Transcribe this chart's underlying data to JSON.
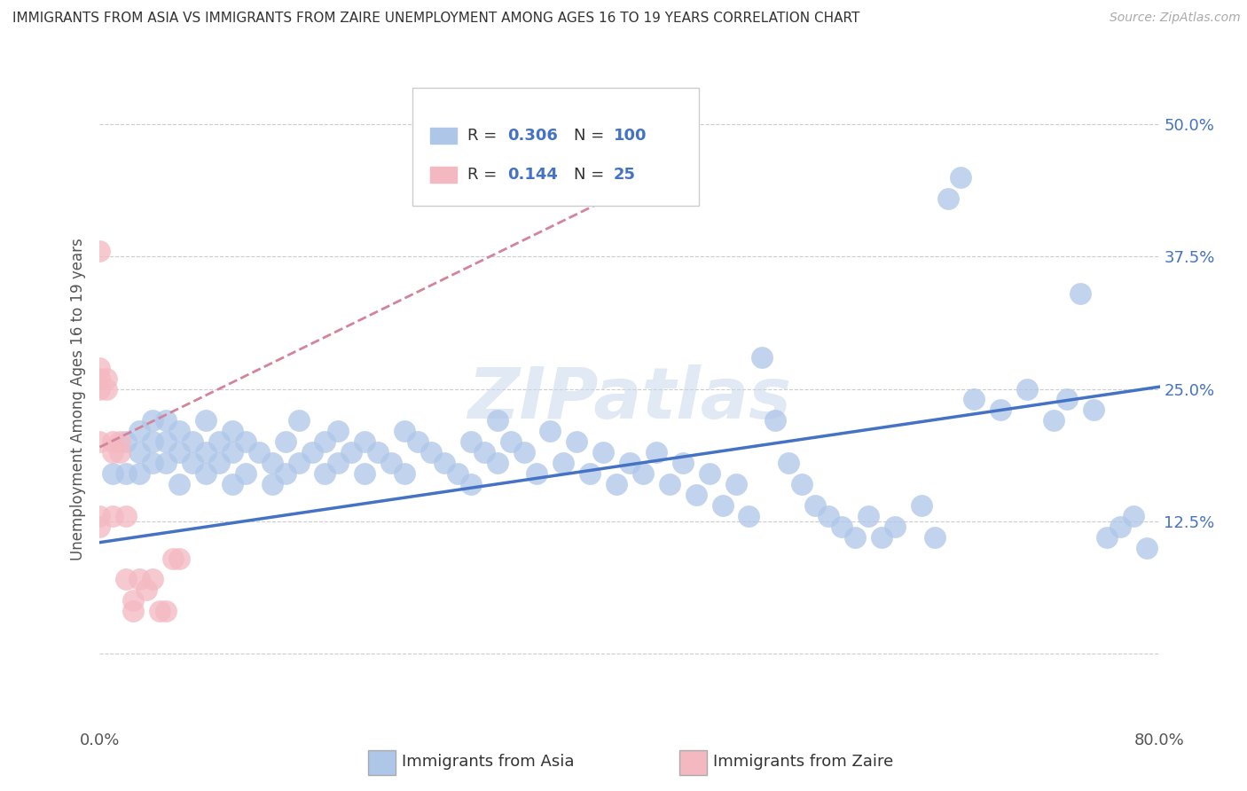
{
  "title": "IMMIGRANTS FROM ASIA VS IMMIGRANTS FROM ZAIRE UNEMPLOYMENT AMONG AGES 16 TO 19 YEARS CORRELATION CHART",
  "source": "Source: ZipAtlas.com",
  "ylabel": "Unemployment Among Ages 16 to 19 years",
  "xlim": [
    0.0,
    0.8
  ],
  "ylim": [
    -0.07,
    0.55
  ],
  "ytick_positions": [
    0.0,
    0.125,
    0.25,
    0.375,
    0.5
  ],
  "yticklabels": [
    "",
    "12.5%",
    "25.0%",
    "37.5%",
    "50.0%"
  ],
  "R_asia": 0.306,
  "N_asia": 100,
  "R_zaire": 0.144,
  "N_zaire": 25,
  "color_asia": "#aec6e8",
  "color_asia_line": "#4472c4",
  "color_zaire": "#f4b8c1",
  "color_zaire_line": "#d4849a",
  "watermark_color": "#c8d8ec",
  "asia_x": [
    0.01,
    0.02,
    0.02,
    0.03,
    0.03,
    0.03,
    0.04,
    0.04,
    0.04,
    0.05,
    0.05,
    0.05,
    0.06,
    0.06,
    0.06,
    0.07,
    0.07,
    0.08,
    0.08,
    0.08,
    0.09,
    0.09,
    0.1,
    0.1,
    0.1,
    0.11,
    0.11,
    0.12,
    0.13,
    0.13,
    0.14,
    0.14,
    0.15,
    0.15,
    0.16,
    0.17,
    0.17,
    0.18,
    0.18,
    0.19,
    0.2,
    0.2,
    0.21,
    0.22,
    0.23,
    0.23,
    0.24,
    0.25,
    0.26,
    0.27,
    0.28,
    0.28,
    0.29,
    0.3,
    0.3,
    0.31,
    0.32,
    0.33,
    0.34,
    0.35,
    0.36,
    0.37,
    0.38,
    0.39,
    0.4,
    0.41,
    0.42,
    0.43,
    0.44,
    0.45,
    0.46,
    0.47,
    0.48,
    0.49,
    0.5,
    0.51,
    0.52,
    0.53,
    0.54,
    0.55,
    0.56,
    0.57,
    0.58,
    0.59,
    0.6,
    0.62,
    0.63,
    0.64,
    0.65,
    0.66,
    0.68,
    0.7,
    0.72,
    0.73,
    0.74,
    0.75,
    0.76,
    0.77,
    0.78,
    0.79
  ],
  "asia_y": [
    0.17,
    0.2,
    0.17,
    0.21,
    0.19,
    0.17,
    0.22,
    0.2,
    0.18,
    0.22,
    0.2,
    0.18,
    0.21,
    0.19,
    0.16,
    0.2,
    0.18,
    0.22,
    0.19,
    0.17,
    0.2,
    0.18,
    0.21,
    0.19,
    0.16,
    0.2,
    0.17,
    0.19,
    0.18,
    0.16,
    0.2,
    0.17,
    0.22,
    0.18,
    0.19,
    0.2,
    0.17,
    0.21,
    0.18,
    0.19,
    0.2,
    0.17,
    0.19,
    0.18,
    0.21,
    0.17,
    0.2,
    0.19,
    0.18,
    0.17,
    0.2,
    0.16,
    0.19,
    0.22,
    0.18,
    0.2,
    0.19,
    0.17,
    0.21,
    0.18,
    0.2,
    0.17,
    0.19,
    0.16,
    0.18,
    0.17,
    0.19,
    0.16,
    0.18,
    0.15,
    0.17,
    0.14,
    0.16,
    0.13,
    0.28,
    0.22,
    0.18,
    0.16,
    0.14,
    0.13,
    0.12,
    0.11,
    0.13,
    0.11,
    0.12,
    0.14,
    0.11,
    0.43,
    0.45,
    0.24,
    0.23,
    0.25,
    0.22,
    0.24,
    0.34,
    0.23,
    0.11,
    0.12,
    0.13,
    0.1
  ],
  "zaire_x": [
    0.0,
    0.0,
    0.0,
    0.0,
    0.0,
    0.0,
    0.0,
    0.005,
    0.005,
    0.01,
    0.01,
    0.01,
    0.015,
    0.015,
    0.02,
    0.02,
    0.025,
    0.025,
    0.03,
    0.035,
    0.04,
    0.045,
    0.05,
    0.055,
    0.06
  ],
  "zaire_y": [
    0.38,
    0.27,
    0.26,
    0.25,
    0.2,
    0.13,
    0.12,
    0.26,
    0.25,
    0.2,
    0.19,
    0.13,
    0.2,
    0.19,
    0.13,
    0.07,
    0.05,
    0.04,
    0.07,
    0.06,
    0.07,
    0.04,
    0.04,
    0.09,
    0.09
  ],
  "asia_line_x0": 0.0,
  "asia_line_x1": 0.8,
  "asia_line_y0": 0.105,
  "asia_line_y1": 0.252,
  "zaire_line_x0": 0.0,
  "zaire_line_x1": 0.45,
  "zaire_line_y0": 0.195,
  "zaire_line_y1": 0.47
}
